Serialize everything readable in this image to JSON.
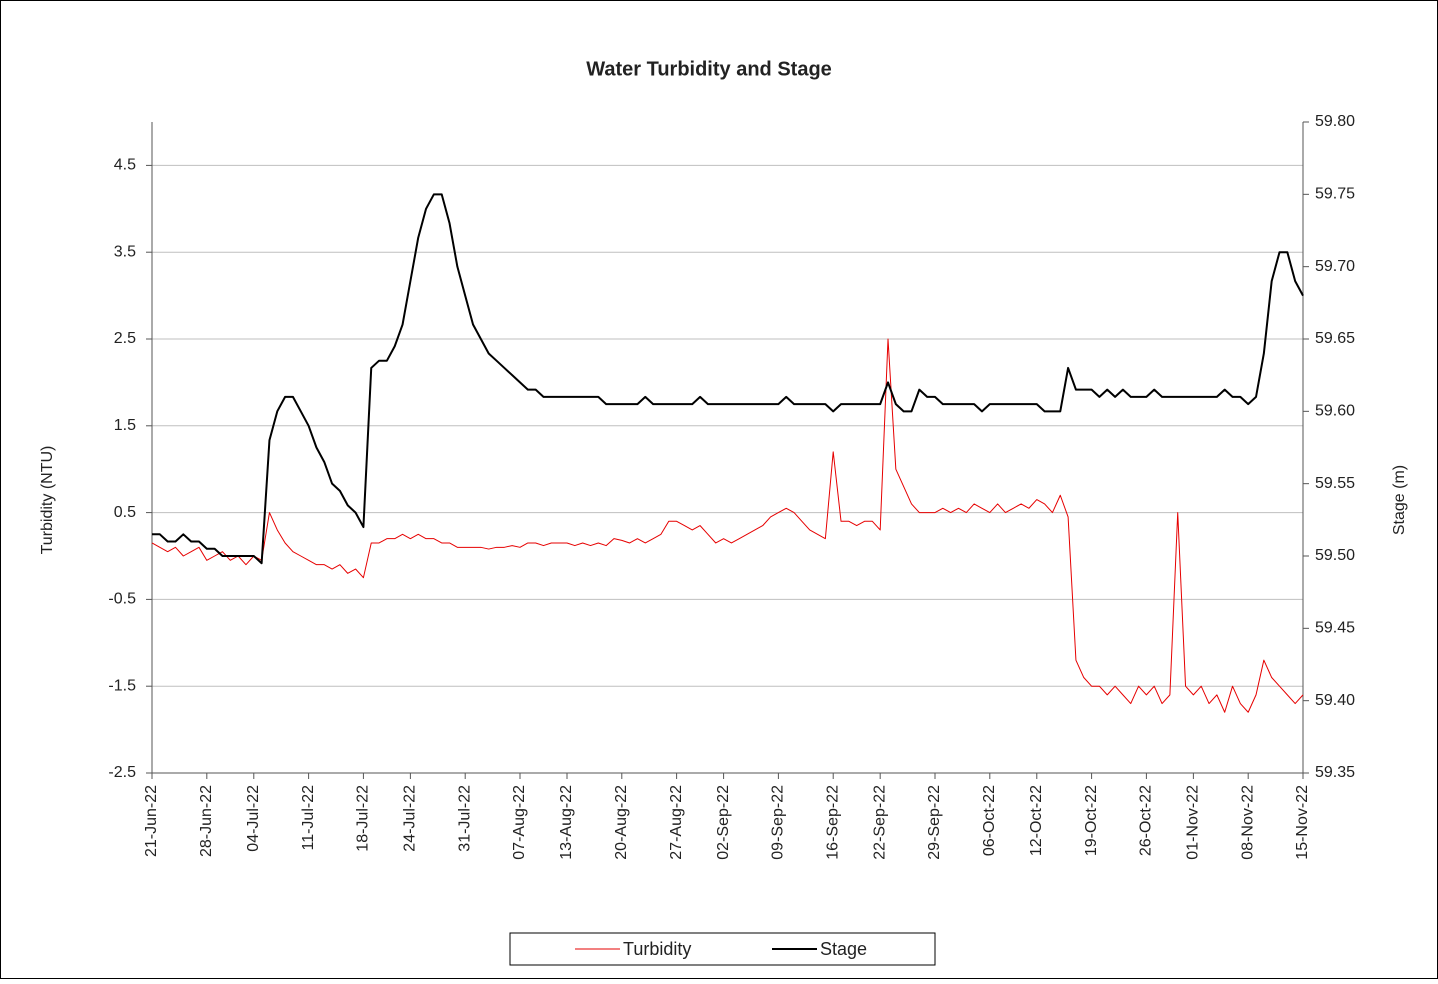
{
  "chart_data": {
    "type": "line",
    "title": "Water Turbidity and Stage",
    "y_label": "Turbidity (NTU)",
    "y2_label": "Stage (m)",
    "x": [
      "2022-06-21",
      "2022-06-22",
      "2022-06-23",
      "2022-06-24",
      "2022-06-25",
      "2022-06-26",
      "2022-06-27",
      "2022-06-28",
      "2022-06-29",
      "2022-06-30",
      "2022-07-01",
      "2022-07-02",
      "2022-07-03",
      "2022-07-04",
      "2022-07-05",
      "2022-07-06",
      "2022-07-07",
      "2022-07-08",
      "2022-07-09",
      "2022-07-10",
      "2022-07-11",
      "2022-07-12",
      "2022-07-13",
      "2022-07-14",
      "2022-07-15",
      "2022-07-16",
      "2022-07-17",
      "2022-07-18",
      "2022-07-19",
      "2022-07-20",
      "2022-07-21",
      "2022-07-22",
      "2022-07-23",
      "2022-07-24",
      "2022-07-25",
      "2022-07-26",
      "2022-07-27",
      "2022-07-28",
      "2022-07-29",
      "2022-07-30",
      "2022-07-31",
      "2022-08-01",
      "2022-08-02",
      "2022-08-03",
      "2022-08-04",
      "2022-08-05",
      "2022-08-06",
      "2022-08-07",
      "2022-08-08",
      "2022-08-09",
      "2022-08-10",
      "2022-08-11",
      "2022-08-12",
      "2022-08-13",
      "2022-08-14",
      "2022-08-15",
      "2022-08-16",
      "2022-08-17",
      "2022-08-18",
      "2022-08-19",
      "2022-08-20",
      "2022-08-21",
      "2022-08-22",
      "2022-08-23",
      "2022-08-24",
      "2022-08-25",
      "2022-08-26",
      "2022-08-27",
      "2022-08-28",
      "2022-08-29",
      "2022-08-30",
      "2022-08-31",
      "2022-09-01",
      "2022-09-02",
      "2022-09-03",
      "2022-09-04",
      "2022-09-05",
      "2022-09-06",
      "2022-09-07",
      "2022-09-08",
      "2022-09-09",
      "2022-09-10",
      "2022-09-11",
      "2022-09-12",
      "2022-09-13",
      "2022-09-14",
      "2022-09-15",
      "2022-09-16",
      "2022-09-17",
      "2022-09-18",
      "2022-09-19",
      "2022-09-20",
      "2022-09-21",
      "2022-09-22",
      "2022-09-23",
      "2022-09-24",
      "2022-09-25",
      "2022-09-26",
      "2022-09-27",
      "2022-09-28",
      "2022-09-29",
      "2022-09-30",
      "2022-10-01",
      "2022-10-02",
      "2022-10-03",
      "2022-10-04",
      "2022-10-05",
      "2022-10-06",
      "2022-10-07",
      "2022-10-08",
      "2022-10-09",
      "2022-10-10",
      "2022-10-11",
      "2022-10-12",
      "2022-10-13",
      "2022-10-14",
      "2022-10-15",
      "2022-10-16",
      "2022-10-17",
      "2022-10-18",
      "2022-10-19",
      "2022-10-20",
      "2022-10-21",
      "2022-10-22",
      "2022-10-23",
      "2022-10-24",
      "2022-10-25",
      "2022-10-26",
      "2022-10-27",
      "2022-10-28",
      "2022-10-29",
      "2022-10-30",
      "2022-10-31",
      "2022-11-01",
      "2022-11-02",
      "2022-11-03",
      "2022-11-04",
      "2022-11-05",
      "2022-11-06",
      "2022-11-07",
      "2022-11-08",
      "2022-11-09",
      "2022-11-10",
      "2022-11-11",
      "2022-11-12",
      "2022-11-13",
      "2022-11-14",
      "2022-11-15"
    ],
    "series": [
      {
        "name": "Turbidity",
        "color": "#e60000",
        "width": 1,
        "values": [
          0.15,
          0.1,
          0.05,
          0.1,
          0.0,
          0.05,
          0.1,
          -0.05,
          0.0,
          0.05,
          -0.05,
          0.0,
          -0.1,
          0.0,
          -0.05,
          0.5,
          0.3,
          0.15,
          0.05,
          0.0,
          -0.05,
          -0.1,
          -0.1,
          -0.15,
          -0.1,
          -0.2,
          -0.15,
          -0.25,
          0.15,
          0.15,
          0.2,
          0.2,
          0.25,
          0.2,
          0.25,
          0.2,
          0.2,
          0.15,
          0.15,
          0.1,
          0.1,
          0.1,
          0.1,
          0.08,
          0.1,
          0.1,
          0.12,
          0.1,
          0.15,
          0.15,
          0.12,
          0.15,
          0.15,
          0.15,
          0.12,
          0.15,
          0.12,
          0.15,
          0.12,
          0.2,
          0.18,
          0.15,
          0.2,
          0.15,
          0.2,
          0.25,
          0.4,
          0.4,
          0.35,
          0.3,
          0.35,
          0.25,
          0.15,
          0.2,
          0.15,
          0.2,
          0.25,
          0.3,
          0.35,
          0.45,
          0.5,
          0.55,
          0.5,
          0.4,
          0.3,
          0.25,
          0.2,
          1.2,
          0.4,
          0.4,
          0.35,
          0.4,
          0.4,
          0.3,
          2.5,
          1.0,
          0.8,
          0.6,
          0.5,
          0.5,
          0.5,
          0.55,
          0.5,
          0.55,
          0.5,
          0.6,
          0.55,
          0.5,
          0.6,
          0.5,
          0.55,
          0.6,
          0.55,
          0.65,
          0.6,
          0.5,
          0.7,
          0.45,
          -1.2,
          -1.4,
          -1.5,
          -1.5,
          -1.6,
          -1.5,
          -1.6,
          -1.7,
          -1.5,
          -1.6,
          -1.5,
          -1.7,
          -1.6,
          0.5,
          -1.5,
          -1.6,
          -1.5,
          -1.7,
          -1.6,
          -1.8,
          -1.5,
          -1.7,
          -1.8,
          -1.6,
          -1.2,
          -1.4,
          -1.5,
          -1.6,
          -1.7,
          -1.6
        ]
      },
      {
        "name": "Stage",
        "color": "#000000",
        "width": 2,
        "axis": "y2",
        "values": [
          59.515,
          59.515,
          59.51,
          59.51,
          59.515,
          59.51,
          59.51,
          59.505,
          59.505,
          59.5,
          59.5,
          59.5,
          59.5,
          59.5,
          59.495,
          59.58,
          59.6,
          59.61,
          59.61,
          59.6,
          59.59,
          59.575,
          59.565,
          59.55,
          59.545,
          59.535,
          59.53,
          59.52,
          59.63,
          59.635,
          59.635,
          59.645,
          59.66,
          59.69,
          59.72,
          59.74,
          59.75,
          59.75,
          59.73,
          59.7,
          59.68,
          59.66,
          59.65,
          59.64,
          59.635,
          59.63,
          59.625,
          59.62,
          59.615,
          59.615,
          59.61,
          59.61,
          59.61,
          59.61,
          59.61,
          59.61,
          59.61,
          59.61,
          59.605,
          59.605,
          59.605,
          59.605,
          59.605,
          59.61,
          59.605,
          59.605,
          59.605,
          59.605,
          59.605,
          59.605,
          59.61,
          59.605,
          59.605,
          59.605,
          59.605,
          59.605,
          59.605,
          59.605,
          59.605,
          59.605,
          59.605,
          59.61,
          59.605,
          59.605,
          59.605,
          59.605,
          59.605,
          59.6,
          59.605,
          59.605,
          59.605,
          59.605,
          59.605,
          59.605,
          59.62,
          59.605,
          59.6,
          59.6,
          59.615,
          59.61,
          59.61,
          59.605,
          59.605,
          59.605,
          59.605,
          59.605,
          59.6,
          59.605,
          59.605,
          59.605,
          59.605,
          59.605,
          59.605,
          59.605,
          59.6,
          59.6,
          59.6,
          59.63,
          59.615,
          59.615,
          59.615,
          59.61,
          59.615,
          59.61,
          59.615,
          59.61,
          59.61,
          59.61,
          59.615,
          59.61,
          59.61,
          59.61,
          59.61,
          59.61,
          59.61,
          59.61,
          59.61,
          59.615,
          59.61,
          59.61,
          59.605,
          59.61,
          59.64,
          59.69,
          59.71,
          59.71,
          59.69,
          59.68
        ]
      }
    ],
    "xlim": [
      "2022-06-21",
      "2022-11-15"
    ],
    "xticks": [
      {
        "value": "2022-06-21",
        "label": "21-Jun-22"
      },
      {
        "value": "2022-06-28",
        "label": "28-Jun-22"
      },
      {
        "value": "2022-07-04",
        "label": "04-Jul-22"
      },
      {
        "value": "2022-07-11",
        "label": "11-Jul-22"
      },
      {
        "value": "2022-07-18",
        "label": "18-Jul-22"
      },
      {
        "value": "2022-07-24",
        "label": "24-Jul-22"
      },
      {
        "value": "2022-07-31",
        "label": "31-Jul-22"
      },
      {
        "value": "2022-08-07",
        "label": "07-Aug-22"
      },
      {
        "value": "2022-08-13",
        "label": "13-Aug-22"
      },
      {
        "value": "2022-08-20",
        "label": "20-Aug-22"
      },
      {
        "value": "2022-08-27",
        "label": "27-Aug-22"
      },
      {
        "value": "2022-09-02",
        "label": "02-Sep-22"
      },
      {
        "value": "2022-09-09",
        "label": "09-Sep-22"
      },
      {
        "value": "2022-09-16",
        "label": "16-Sep-22"
      },
      {
        "value": "2022-09-22",
        "label": "22-Sep-22"
      },
      {
        "value": "2022-09-29",
        "label": "29-Sep-22"
      },
      {
        "value": "2022-10-06",
        "label": "06-Oct-22"
      },
      {
        "value": "2022-10-12",
        "label": "12-Oct-22"
      },
      {
        "value": "2022-10-19",
        "label": "19-Oct-22"
      },
      {
        "value": "2022-10-26",
        "label": "26-Oct-22"
      },
      {
        "value": "2022-11-01",
        "label": "01-Nov-22"
      },
      {
        "value": "2022-11-08",
        "label": "08-Nov-22"
      },
      {
        "value": "2022-11-15",
        "label": "15-Nov-22"
      }
    ],
    "ylim": [
      -2.5,
      5.0
    ],
    "yticks": [
      -2.5,
      -1.5,
      -0.5,
      0.5,
      1.5,
      2.5,
      3.5,
      4.5
    ],
    "y2lim": [
      59.35,
      59.8
    ],
    "y2ticks": [
      59.35,
      {
        "value": 59.4,
        "label": "59.40"
      },
      59.45,
      {
        "value": 59.5,
        "label": "59.50"
      },
      59.55,
      {
        "value": 59.6,
        "label": "59.60"
      },
      59.65,
      {
        "value": 59.7,
        "label": "59.70"
      },
      59.75,
      {
        "value": 59.8,
        "label": "59.80"
      }
    ],
    "grid": true,
    "legend": "bottom"
  }
}
